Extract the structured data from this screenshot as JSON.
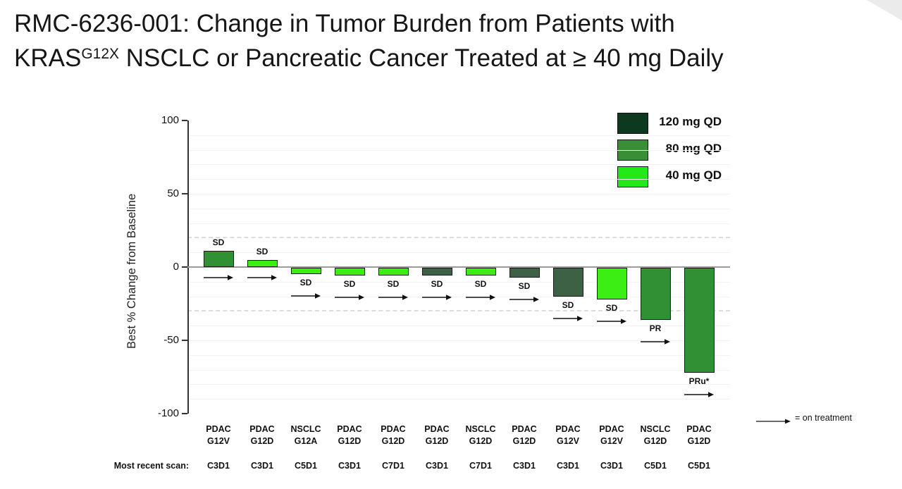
{
  "header": {
    "title_line1": "RMC-6236-001: Change in Tumor Burden from Patients with",
    "title_line2_prefix": "KRAS",
    "title_line2_sup": "G12X",
    "title_line2_suffix": " NSCLC or Pancreatic Cancer Treated at ≥ 40 mg Daily"
  },
  "chart_data": {
    "type": "bar",
    "title": "RMC-6236-001: Change in Tumor Burden from Patients with KRAS G12X NSCLC or Pancreatic Cancer Treated at ≥ 40 mg Daily",
    "ylabel": "Best % Change from Baseline",
    "ylim": [
      -100,
      100
    ],
    "yticks": [
      100,
      50,
      0,
      -50,
      -100
    ],
    "reference_lines_dashed": [
      20,
      -30
    ],
    "grid": "faint horizontal lines every 10 units",
    "legend_position": "top-right",
    "legend": [
      {
        "label": "120 mg QD",
        "dose": "120",
        "swatch_color": "#0d3a1e"
      },
      {
        "label": "80 mg QD",
        "dose": "80",
        "swatch_color": "#3a8f36"
      },
      {
        "label": "40 mg QD",
        "dose": "40",
        "swatch_color": "#25e818"
      }
    ],
    "x_axis_note": "Most recent scan:",
    "on_treatment_legend": "= on treatment",
    "bars": [
      {
        "tumor": "PDAC",
        "mutation": "G12V",
        "dose": "80",
        "value": 11,
        "response": "SD",
        "scan": "C3D1",
        "on_treatment": true
      },
      {
        "tumor": "PDAC",
        "mutation": "G12D",
        "dose": "40",
        "value": 5,
        "response": "SD",
        "scan": "C3D1",
        "on_treatment": true
      },
      {
        "tumor": "NSCLC",
        "mutation": "G12A",
        "dose": "40",
        "value": -5,
        "response": "SD",
        "scan": "C5D1",
        "on_treatment": true
      },
      {
        "tumor": "PDAC",
        "mutation": "G12D",
        "dose": "40",
        "value": -6,
        "response": "SD",
        "scan": "C3D1",
        "on_treatment": true
      },
      {
        "tumor": "PDAC",
        "mutation": "G12D",
        "dose": "40",
        "value": -6,
        "response": "SD",
        "scan": "C7D1",
        "on_treatment": true
      },
      {
        "tumor": "PDAC",
        "mutation": "G12D",
        "dose": "120",
        "value": -6,
        "response": "SD",
        "scan": "C3D1",
        "on_treatment": true
      },
      {
        "tumor": "NSCLC",
        "mutation": "G12D",
        "dose": "40",
        "value": -6,
        "response": "SD",
        "scan": "C7D1",
        "on_treatment": true
      },
      {
        "tumor": "PDAC",
        "mutation": "G12D",
        "dose": "120",
        "value": -7,
        "response": "SD",
        "scan": "C3D1",
        "on_treatment": true
      },
      {
        "tumor": "PDAC",
        "mutation": "G12V",
        "dose": "120",
        "value": -20,
        "response": "SD",
        "scan": "C3D1",
        "on_treatment": true
      },
      {
        "tumor": "PDAC",
        "mutation": "G12V",
        "dose": "40",
        "value": -22,
        "response": "SD",
        "scan": "C3D1",
        "on_treatment": true
      },
      {
        "tumor": "NSCLC",
        "mutation": "G12D",
        "dose": "80",
        "value": -36,
        "response": "PR",
        "scan": "C5D1",
        "on_treatment": true
      },
      {
        "tumor": "PDAC",
        "mutation": "G12D",
        "dose": "80",
        "value": -72,
        "response": "PRu*",
        "scan": "C5D1",
        "on_treatment": true
      }
    ]
  },
  "colors": {
    "dose_120_bar": "#3d6144",
    "dose_80_bar": "#2f9134",
    "dose_40_bar": "#3cee13",
    "zero_line": "#9b9b9b",
    "axis": "#333333",
    "dashed_refline": "#dcdcdc",
    "corner_fold": "#ebebeb"
  }
}
